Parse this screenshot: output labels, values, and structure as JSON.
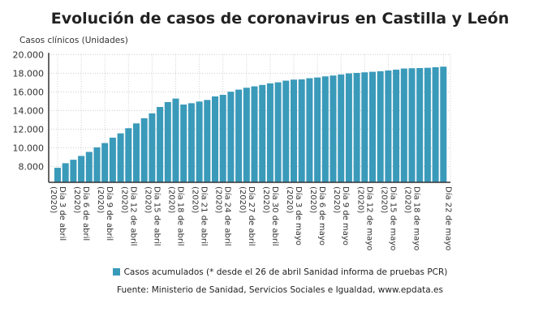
{
  "chart_data": {
    "type": "bar",
    "title": "Evolución de casos de coronavirus en Castilla y León",
    "ylabel": "Casos clínicos (Unidades)",
    "xlabel": "",
    "ylim": [
      6300,
      20000
    ],
    "yticks": [
      "8.000",
      "10.000",
      "12.000",
      "14.000",
      "16.000",
      "18.000",
      "20.000"
    ],
    "ytick_values": [
      8000,
      10000,
      12000,
      14000,
      16000,
      18000,
      20000
    ],
    "grid": true,
    "legend_position": "bottom",
    "bar_color": "#3a9aba",
    "x_start_date": "3 abril",
    "xtick_labels": [
      {
        "index": 0,
        "line1": "Día 3 de abril",
        "line2": "(2020)"
      },
      {
        "index": 3,
        "line1": "Día 6 de abril",
        "line2": "(2020)"
      },
      {
        "index": 6,
        "line1": "Día 9 de abril",
        "line2": "(2020)"
      },
      {
        "index": 9,
        "line1": "Día 12 de abril",
        "line2": "(2020)"
      },
      {
        "index": 12,
        "line1": "Día 15 de abril",
        "line2": "(2020)"
      },
      {
        "index": 15,
        "line1": "Día 18 de abril",
        "line2": "(2020)"
      },
      {
        "index": 18,
        "line1": "Día 21 de abril",
        "line2": "(2020)"
      },
      {
        "index": 21,
        "line1": "Día 24 de abril",
        "line2": "(2020)"
      },
      {
        "index": 24,
        "line1": "Día 27 de abril",
        "line2": "(2020)"
      },
      {
        "index": 27,
        "line1": "Día 30 de abril",
        "line2": "(2020)"
      },
      {
        "index": 30,
        "line1": "Día 3 de mayo",
        "line2": "(2020)"
      },
      {
        "index": 33,
        "line1": "Día 6 de mayo",
        "line2": "(2020)"
      },
      {
        "index": 36,
        "line1": "Día 9 de mayo",
        "line2": "(2020)"
      },
      {
        "index": 39,
        "line1": "Día 12 de mayo",
        "line2": "(2020)"
      },
      {
        "index": 42,
        "line1": "Día 15 de mayo",
        "line2": "(2020)"
      },
      {
        "index": 45,
        "line1": "Día 18 de mayo",
        "line2": "(2020)"
      },
      {
        "index": 49,
        "line1": "Día 22 de mayo",
        "line2": ""
      }
    ],
    "series": [
      {
        "name": "Casos acumulados (* desde el 26 de abril Sanidad informa de pruebas PCR)",
        "values": [
          7860,
          8350,
          8720,
          9130,
          9560,
          10050,
          10510,
          11090,
          11550,
          12100,
          12620,
          13170,
          13690,
          14380,
          14900,
          15280,
          14640,
          14780,
          14960,
          15130,
          15510,
          15680,
          16010,
          16240,
          16440,
          16590,
          16740,
          16910,
          17020,
          17200,
          17310,
          17340,
          17460,
          17540,
          17660,
          17750,
          17860,
          17980,
          18030,
          18090,
          18150,
          18210,
          18290,
          18380,
          18500,
          18530,
          18550,
          18580,
          18640,
          18700
        ]
      }
    ]
  },
  "source": "Fuente: Ministerio de Sanidad, Servicios Sociales e Igualdad, www.epdata.es"
}
